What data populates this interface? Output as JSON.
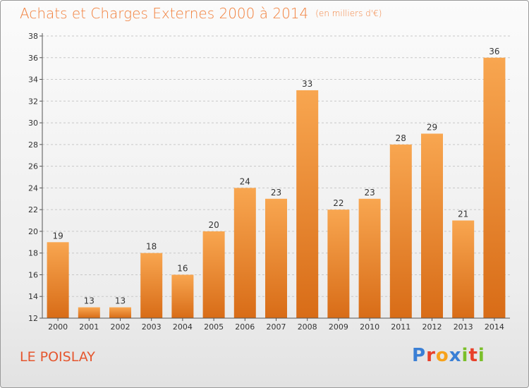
{
  "header": {
    "title": "Achats et Charges Externes 2000 à 2014",
    "unit": "(en milliers d'€)"
  },
  "footer": {
    "commune": "LE POISLAY",
    "logo_text": "Proxiti",
    "logo_colors": [
      "#3a7fd5",
      "#e8402a",
      "#f7a21b",
      "#3a7fd5",
      "#7bbf2a",
      "#e8402a",
      "#7bbf2a"
    ]
  },
  "colors": {
    "title": "#f17f3b",
    "commune": "#e5562e",
    "bar_top": "#f8a650",
    "bar_bottom": "#d86c17",
    "axis": "#555555",
    "grid": "#c8c8c8"
  },
  "chart_data": {
    "type": "bar",
    "title": "Achats et Charges Externes 2000 à 2014",
    "subtitle": "(en milliers d'€)",
    "categories": [
      "2000",
      "2001",
      "2002",
      "2003",
      "2004",
      "2005",
      "2006",
      "2007",
      "2008",
      "2009",
      "2010",
      "2011",
      "2012",
      "2013",
      "2014"
    ],
    "values": [
      19,
      13,
      13,
      18,
      16,
      20,
      24,
      23,
      33,
      22,
      23,
      28,
      29,
      21,
      36
    ],
    "ylim": [
      12,
      38
    ],
    "yticks": [
      12,
      14,
      16,
      18,
      20,
      22,
      24,
      26,
      28,
      30,
      32,
      34,
      36,
      38
    ],
    "grid": true,
    "legend": false
  }
}
